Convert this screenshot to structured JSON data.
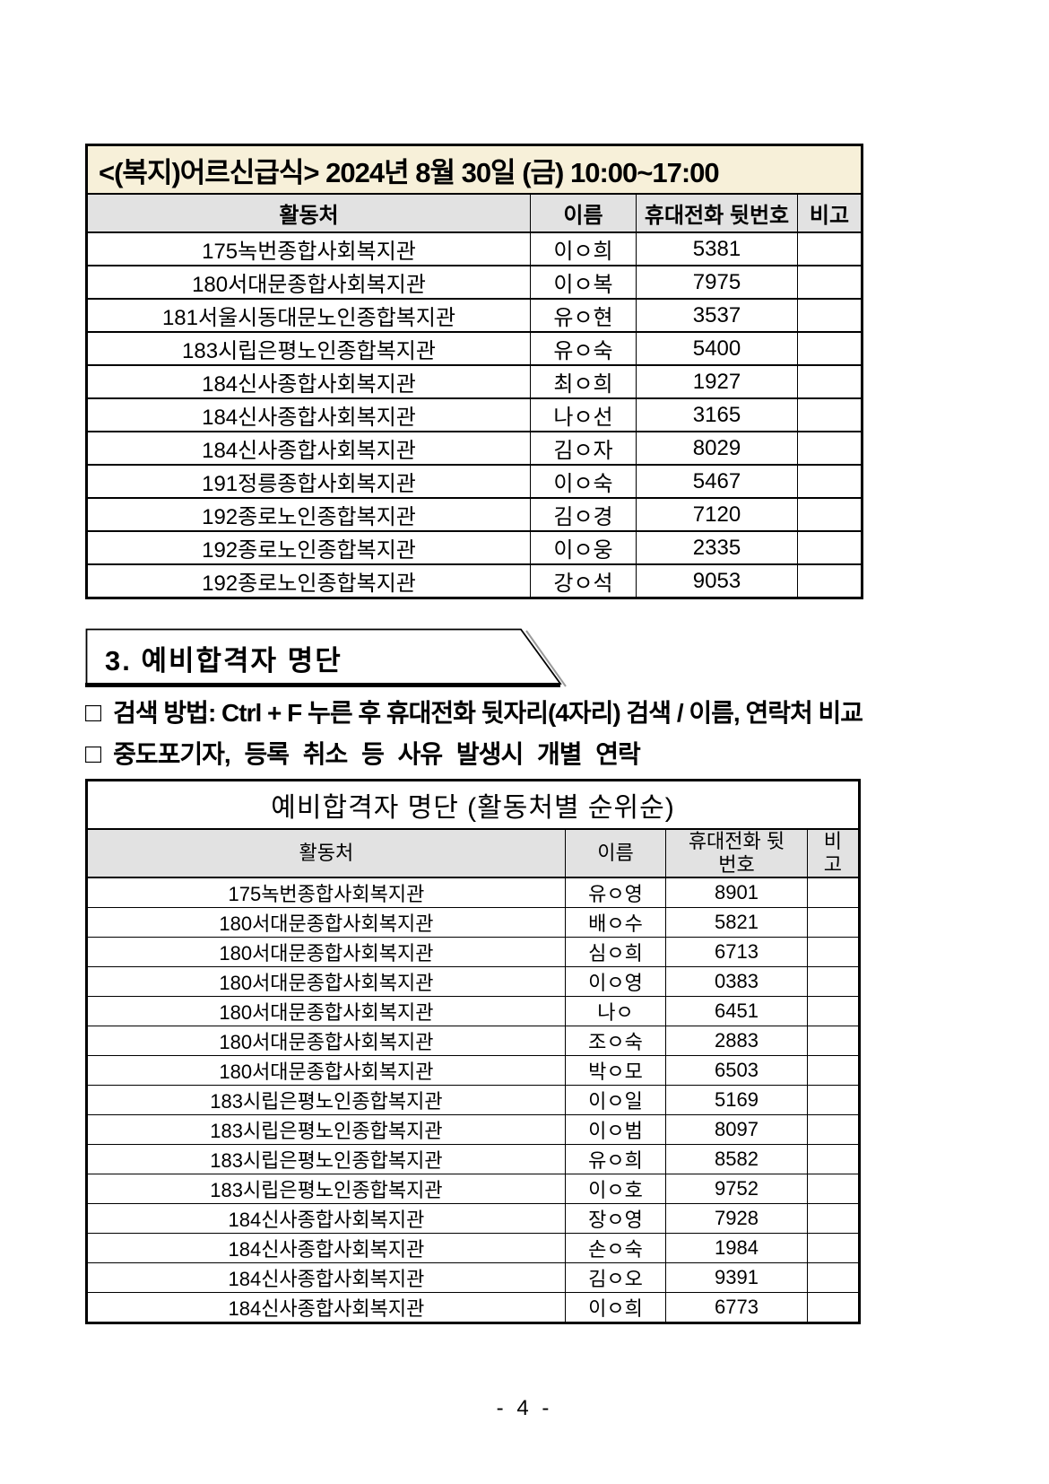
{
  "colors": {
    "table1_title_bg": "#f7f0d9",
    "header_bg": "#e2e2e2",
    "border": "#000000",
    "text": "#000000"
  },
  "table1": {
    "title": "<(복지)어르신급식> 2024년 8월 30일 (금) 10:00~17:00",
    "headers": [
      "활동처",
      "이름",
      "휴대전화 뒷번호",
      "비고"
    ],
    "rows": [
      [
        "175녹번종합사회복지관",
        "이ㅇ희",
        "5381",
        ""
      ],
      [
        "180서대문종합사회복지관",
        "이ㅇ복",
        "7975",
        ""
      ],
      [
        "181서울시동대문노인종합복지관",
        "유ㅇ현",
        "3537",
        ""
      ],
      [
        "183시립은평노인종합복지관",
        "유ㅇ숙",
        "5400",
        ""
      ],
      [
        "184신사종합사회복지관",
        "최ㅇ희",
        "1927",
        ""
      ],
      [
        "184신사종합사회복지관",
        "나ㅇ선",
        "3165",
        ""
      ],
      [
        "184신사종합사회복지관",
        "김ㅇ자",
        "8029",
        ""
      ],
      [
        "191정릉종합사회복지관",
        "이ㅇ숙",
        "5467",
        ""
      ],
      [
        "192종로노인종합복지관",
        "김ㅇ경",
        "7120",
        ""
      ],
      [
        "192종로노인종합복지관",
        "이ㅇ웅",
        "2335",
        ""
      ],
      [
        "192종로노인종합복지관",
        "강ㅇ석",
        "9053",
        ""
      ]
    ]
  },
  "section3": {
    "title": "3. 예비합격자 명단",
    "bullet_marker": "□",
    "bullets": [
      "검색 방법: Ctrl + F 누른 후 휴대전화 뒷자리(4자리) 검색 / 이름, 연락처 비교",
      "중도포기자, 등록 취소 등 사유 발생시 개별 연락"
    ]
  },
  "table2": {
    "title": "예비합격자 명단 (활동처별 순위순)",
    "headers": [
      "활동처",
      "이름",
      "휴대전화 뒷\n번호",
      "비\n고"
    ],
    "rows": [
      [
        "175녹번종합사회복지관",
        "유ㅇ영",
        "8901",
        ""
      ],
      [
        "180서대문종합사회복지관",
        "배ㅇ수",
        "5821",
        ""
      ],
      [
        "180서대문종합사회복지관",
        "심ㅇ희",
        "6713",
        ""
      ],
      [
        "180서대문종합사회복지관",
        "이ㅇ영",
        "0383",
        ""
      ],
      [
        "180서대문종합사회복지관",
        "나ㅇ",
        "6451",
        ""
      ],
      [
        "180서대문종합사회복지관",
        "조ㅇ숙",
        "2883",
        ""
      ],
      [
        "180서대문종합사회복지관",
        "박ㅇ모",
        "6503",
        ""
      ],
      [
        "183시립은평노인종합복지관",
        "이ㅇ일",
        "5169",
        ""
      ],
      [
        "183시립은평노인종합복지관",
        "이ㅇ범",
        "8097",
        ""
      ],
      [
        "183시립은평노인종합복지관",
        "유ㅇ희",
        "8582",
        ""
      ],
      [
        "183시립은평노인종합복지관",
        "이ㅇ호",
        "9752",
        ""
      ],
      [
        "184신사종합사회복지관",
        "장ㅇ영",
        "7928",
        ""
      ],
      [
        "184신사종합사회복지관",
        "손ㅇ숙",
        "1984",
        ""
      ],
      [
        "184신사종합사회복지관",
        "김ㅇ오",
        "9391",
        ""
      ],
      [
        "184신사종합사회복지관",
        "이ㅇ희",
        "6773",
        ""
      ]
    ]
  },
  "footer": {
    "page_number": "- 4 -"
  }
}
